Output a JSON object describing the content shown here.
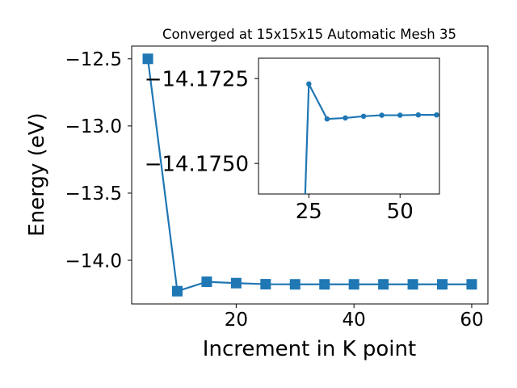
{
  "chart_data": [
    {
      "type": "line",
      "title": "Converged at 15x15x15 Automatic Mesh 35",
      "xlabel": "Increment in K point",
      "ylabel": "Energy (eV)",
      "xlim": [
        2.25,
        62.75
      ],
      "ylim": [
        -14.325,
        -12.405
      ],
      "xticks": [
        20,
        40,
        60
      ],
      "yticks": [
        -12.5,
        -13.0,
        -13.5,
        -14.0
      ],
      "xtick_labels": [
        "20",
        "40",
        "60"
      ],
      "ytick_labels": [
        "−12.5",
        "−13.0",
        "−13.5",
        "−14.0"
      ],
      "marker": "square",
      "color": "#1f77b4",
      "grid": false,
      "series": [
        {
          "x": [
            5,
            10,
            15,
            20,
            25,
            30,
            35,
            40,
            45,
            50,
            55,
            60
          ],
          "y": [
            -12.5,
            -14.23,
            -14.16,
            -14.17,
            -14.178,
            -14.179,
            -14.179,
            -14.179,
            -14.179,
            -14.179,
            -14.179,
            -14.179
          ]
        }
      ]
    },
    {
      "type": "line",
      "title": "",
      "xlabel": "",
      "ylabel": "",
      "xlim": [
        11.2,
        60.8
      ],
      "ylim": [
        -14.1759,
        -14.1719
      ],
      "xticks": [
        25,
        50
      ],
      "yticks": [
        -14.175,
        -14.1725
      ],
      "xtick_labels": [
        "25",
        "50"
      ],
      "ytick_labels": [
        "−14.1750",
        "−14.1725"
      ],
      "marker": "circle",
      "color": "#1f77b4",
      "grid": false,
      "series": [
        {
          "x": [
            24,
            25,
            30,
            35,
            40,
            45,
            50,
            55,
            60
          ],
          "y": [
            -14.1759,
            -14.17266,
            -14.17369,
            -14.17366,
            -14.17361,
            -14.17358,
            -14.17358,
            -14.17357,
            -14.17357
          ]
        }
      ]
    }
  ]
}
